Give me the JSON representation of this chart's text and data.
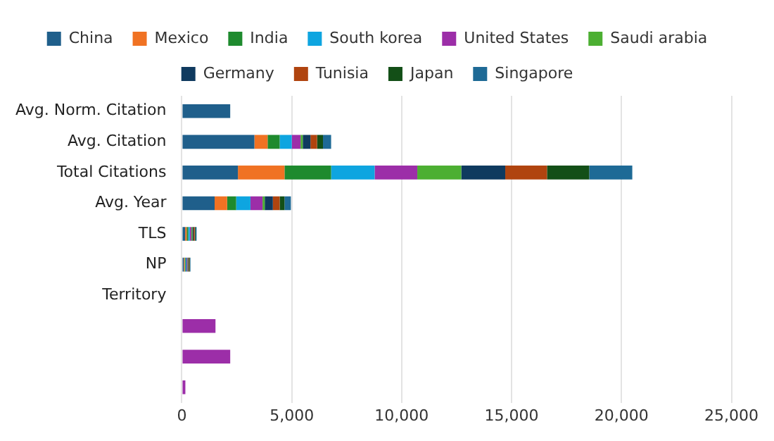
{
  "chart_data": {
    "type": "bar",
    "orientation": "horizontal",
    "stacked": true,
    "legend": "top",
    "grid": "x",
    "categories": [
      "Avg. Norm. Citation",
      "Avg. Citation",
      "Total Citations",
      "Avg. Year",
      "TLS",
      "NP",
      "Territory",
      null,
      null,
      null
    ],
    "xlim": [
      0,
      25000
    ],
    "xticks": [
      0,
      {
        "value": 5000,
        "label": "5,000"
      },
      {
        "value": 10000,
        "label": "10,000"
      },
      {
        "value": 15000,
        "label": "15,000"
      },
      {
        "value": 20000,
        "label": "20,000"
      },
      {
        "value": 25000,
        "label": "25,000"
      }
    ],
    "series": [
      {
        "name": "China",
        "color": "#1f5f8b",
        "values": [
          2200,
          3300,
          2550,
          1490,
          150,
          90,
          0,
          null,
          null,
          null
        ]
      },
      {
        "name": "Mexico",
        "color": "#f07223",
        "values": [
          null,
          600,
          2120,
          570,
          70,
          40,
          0,
          null,
          null,
          null
        ]
      },
      {
        "name": "India",
        "color": "#1e8a2e",
        "values": [
          null,
          550,
          2120,
          410,
          70,
          40,
          0,
          null,
          null,
          null
        ]
      },
      {
        "name": "South korea",
        "color": "#0ea5e0",
        "values": [
          null,
          550,
          1980,
          650,
          70,
          40,
          0,
          null,
          null,
          null
        ]
      },
      {
        "name": "United States",
        "color": "#9c2ea8",
        "values": [
          null,
          400,
          1940,
          550,
          70,
          40,
          0,
          1530,
          2200,
          160
        ]
      },
      {
        "name": "Saudi arabia",
        "color": "#4caf32",
        "values": [
          null,
          100,
          2000,
          100,
          50,
          30,
          0,
          null,
          null,
          null
        ]
      },
      {
        "name": "Germany",
        "color": "#0f3a5f",
        "values": [
          null,
          350,
          2000,
          370,
          50,
          30,
          0,
          null,
          null,
          null
        ]
      },
      {
        "name": "Tunisia",
        "color": "#b0440f",
        "values": [
          null,
          300,
          1900,
          310,
          50,
          30,
          0,
          null,
          null,
          null
        ]
      },
      {
        "name": "Japan",
        "color": "#134f17",
        "values": [
          null,
          270,
          1920,
          220,
          40,
          25,
          0,
          null,
          null,
          null
        ]
      },
      {
        "name": "Singapore",
        "color": "#1e6a96",
        "values": [
          null,
          370,
          1960,
          290,
          50,
          25,
          0,
          null,
          null,
          null
        ]
      }
    ]
  }
}
